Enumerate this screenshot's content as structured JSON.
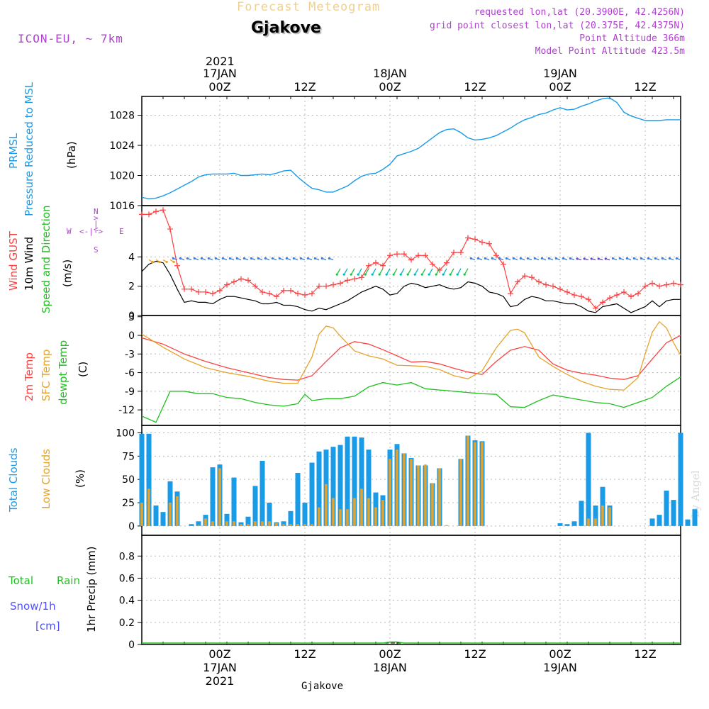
{
  "header": {
    "title_faded": "Forecast Meteogram",
    "location": "Gjakove",
    "model": "ICON-EU, ~ 7km",
    "requested": "requested lon,lat (20.3900E, 42.4256N)",
    "closest": "grid point closest lon,lat (20.375E, 42.4375N)",
    "point_alt": "Point Altitude 366m",
    "model_alt": "Model Point Altitude 423.5m",
    "watermark": "by Angel",
    "bottom_label": "Gjakove"
  },
  "colors": {
    "pressure": "#1e90ff",
    "gust": "#ff4040",
    "wind": "#000000",
    "temp2m": "#ff4040",
    "sfc": "#e6a32a",
    "dewpt": "#20c020",
    "total_clouds": "#1a9be8",
    "low_clouds": "#e6a32a",
    "rain": "#20c020",
    "snow": "#5050ff",
    "purple": "#b040d0"
  },
  "time_axis": {
    "top_year": "2021",
    "top_labels": [
      {
        "h": 0,
        "l1": "17JAN",
        "l2": "00Z"
      },
      {
        "h": 12,
        "l1": "",
        "l2": "12Z"
      },
      {
        "h": 24,
        "l1": "18JAN",
        "l2": "00Z"
      },
      {
        "h": 36,
        "l1": "",
        "l2": "12Z"
      },
      {
        "h": 48,
        "l1": "19JAN",
        "l2": "00Z"
      },
      {
        "h": 60,
        "l1": "",
        "l2": "12Z"
      }
    ],
    "bottom_labels": [
      {
        "h": 0,
        "l1": "00Z",
        "l2": "17JAN",
        "l3": "2021"
      },
      {
        "h": 12,
        "l1": "12Z",
        "l2": "",
        "l3": ""
      },
      {
        "h": 24,
        "l1": "00Z",
        "l2": "18JAN",
        "l3": ""
      },
      {
        "h": 36,
        "l1": "12Z",
        "l2": "",
        "l3": ""
      },
      {
        "h": 48,
        "l1": "00Z",
        "l2": "19JAN",
        "l3": ""
      },
      {
        "h": 60,
        "l1": "12Z",
        "l2": "",
        "l3": ""
      }
    ]
  },
  "panels": {
    "pressure": {
      "label1": "PRMSL",
      "label2": "Pressure Reduced to MSL",
      "unit": "(hPa)",
      "ticks": [
        "1016",
        "1020",
        "1024",
        "1028"
      ]
    },
    "wind": {
      "label1": "Wind GUST",
      "label2": "10m Wind",
      "label3": "Speed and Direction",
      "unit": "(m/s)",
      "ticks": [
        "0",
        "2",
        "4"
      ],
      "compass": {
        "n": "N",
        "s": "S",
        "w": "W",
        "e": "E"
      }
    },
    "temp": {
      "label1": "2m Temp",
      "label2": "SFC Temp",
      "label3": "dewpt Temp",
      "unit": "(C)",
      "ticks": [
        "-12",
        "-9",
        "-6",
        "-3",
        "0",
        "3"
      ]
    },
    "clouds": {
      "label1": "Total Clouds",
      "label2": "Low Clouds",
      "unit": "(%)",
      "ticks": [
        "0",
        "25",
        "50",
        "75",
        "100"
      ]
    },
    "precip": {
      "label1": "Total",
      "label2": "Rain",
      "label3": "Snow/1h",
      "label4": "[cm]",
      "unit": "1hr Precip (mm)",
      "ticks": [
        "0",
        "0.2",
        "0.4",
        "0.6",
        "0.8"
      ]
    }
  },
  "chart_data": [
    {
      "type": "line",
      "title": "PRMSL Pressure Reduced to MSL",
      "ylabel": "hPa",
      "ylim": [
        1016,
        1030
      ],
      "x_hours_from": -11,
      "series": [
        {
          "name": "PRMSL",
          "x": [
            -11,
            -10,
            -9,
            -8,
            -7,
            -6,
            -5,
            -4,
            -3,
            -2,
            -1,
            0,
            1,
            2,
            3,
            4,
            5,
            6,
            7,
            8,
            9,
            10,
            11,
            12,
            13,
            14,
            15,
            16,
            17,
            18,
            19,
            20,
            21,
            22,
            23,
            24,
            25,
            26,
            27,
            28,
            29,
            30,
            31,
            32,
            33,
            34,
            35,
            36,
            37,
            38,
            39,
            40,
            41,
            42,
            43,
            44,
            45,
            46,
            47,
            48,
            49,
            50,
            51,
            52,
            53,
            54,
            55,
            56,
            57,
            58,
            59,
            60,
            61,
            62,
            63,
            64,
            65
          ],
          "values": [
            1017.1,
            1016.9,
            1017.0,
            1017.3,
            1017.7,
            1018.2,
            1018.7,
            1019.2,
            1019.8,
            1020.1,
            1020.2,
            1020.2,
            1020.2,
            1020.3,
            1020.0,
            1020.0,
            1020.1,
            1020.2,
            1020.1,
            1020.3,
            1020.6,
            1020.7,
            1019.8,
            1019.0,
            1018.3,
            1018.1,
            1017.8,
            1017.8,
            1018.2,
            1018.6,
            1019.3,
            1019.9,
            1020.2,
            1020.3,
            1020.8,
            1021.5,
            1022.6,
            1022.9,
            1023.2,
            1023.6,
            1024.3,
            1025.0,
            1025.7,
            1026.1,
            1026.2,
            1025.7,
            1025.0,
            1024.7,
            1024.8,
            1025.0,
            1025.3,
            1025.8,
            1026.3,
            1026.9,
            1027.4,
            1027.7,
            1028.1,
            1028.3,
            1028.7,
            1029.0,
            1028.7,
            1028.8,
            1029.2,
            1029.5,
            1029.9,
            1030.2,
            1030.3,
            1029.7,
            1028.4,
            1027.9,
            1027.6,
            1027.3,
            1027.3,
            1027.3,
            1027.4,
            1027.4,
            1027.4
          ]
        }
      ]
    },
    {
      "type": "line",
      "title": "Wind GUST / 10m Wind Speed and Direction",
      "ylabel": "m/s",
      "ylim": [
        0,
        7.5
      ],
      "series": [
        {
          "name": "Wind GUST",
          "x": [
            -11,
            -10,
            -9,
            -8,
            -7,
            -6,
            -5,
            -4,
            -3,
            -2,
            -1,
            0,
            1,
            2,
            3,
            4,
            5,
            6,
            7,
            8,
            9,
            10,
            11,
            12,
            13,
            14,
            15,
            16,
            17,
            18,
            19,
            20,
            21,
            22,
            23,
            24,
            25,
            26,
            27,
            28,
            29,
            30,
            31,
            32,
            33,
            34,
            35,
            36,
            37,
            38,
            39,
            40,
            41,
            42,
            43,
            44,
            45,
            46,
            47,
            48,
            49,
            50,
            51,
            52,
            53,
            54,
            55,
            56,
            57,
            58,
            59,
            60,
            61,
            62,
            63,
            64,
            65
          ],
          "values": [
            6.9,
            6.9,
            7.1,
            7.2,
            5.9,
            3.4,
            1.8,
            1.8,
            1.6,
            1.6,
            1.5,
            1.7,
            2.1,
            2.3,
            2.5,
            2.4,
            2.0,
            1.6,
            1.5,
            1.3,
            1.7,
            1.7,
            1.5,
            1.4,
            1.5,
            2.0,
            2.0,
            2.1,
            2.2,
            2.4,
            2.5,
            2.6,
            3.4,
            3.6,
            3.4,
            4.1,
            4.2,
            4.2,
            3.8,
            4.1,
            4.1,
            3.5,
            3.1,
            3.6,
            4.3,
            4.3,
            5.3,
            5.2,
            5.0,
            4.9,
            4.1,
            3.5,
            1.5,
            2.3,
            2.7,
            2.6,
            2.3,
            2.1,
            2.0,
            1.8,
            1.6,
            1.4,
            1.3,
            1.1,
            0.5,
            0.9,
            1.2,
            1.4,
            1.6,
            1.3,
            1.5,
            2.0,
            2.2,
            2.0,
            2.1,
            2.2,
            2.1
          ]
        },
        {
          "name": "10m Wind",
          "x": [
            -11,
            -10,
            -9,
            -8,
            -7,
            -6,
            -5,
            -4,
            -3,
            -2,
            -1,
            0,
            1,
            2,
            3,
            4,
            5,
            6,
            7,
            8,
            9,
            10,
            11,
            12,
            13,
            14,
            15,
            16,
            17,
            18,
            19,
            20,
            21,
            22,
            23,
            24,
            25,
            26,
            27,
            28,
            29,
            30,
            31,
            32,
            33,
            34,
            35,
            36,
            37,
            38,
            39,
            40,
            41,
            42,
            43,
            44,
            45,
            46,
            47,
            48,
            49,
            50,
            51,
            52,
            53,
            54,
            55,
            56,
            57,
            58,
            59,
            60,
            61,
            62,
            63,
            64,
            65
          ],
          "values": [
            3.0,
            3.5,
            3.7,
            3.6,
            2.8,
            1.8,
            0.9,
            1.0,
            0.9,
            0.9,
            0.8,
            1.1,
            1.3,
            1.3,
            1.2,
            1.1,
            1.0,
            0.8,
            0.8,
            0.9,
            0.7,
            0.7,
            0.6,
            0.4,
            0.3,
            0.5,
            0.4,
            0.6,
            0.8,
            1.0,
            1.3,
            1.6,
            1.8,
            2.0,
            1.8,
            1.4,
            1.5,
            2.0,
            2.2,
            2.1,
            1.9,
            2.0,
            2.1,
            1.9,
            1.8,
            1.9,
            2.3,
            2.2,
            2.0,
            1.6,
            1.5,
            1.3,
            0.6,
            0.7,
            1.1,
            1.3,
            1.2,
            1.0,
            1.0,
            0.9,
            0.8,
            0.8,
            0.6,
            0.3,
            0.2,
            0.6,
            0.7,
            0.8,
            0.5,
            0.2,
            0.4,
            0.6,
            1.0,
            0.6,
            1.0,
            1.1,
            1.1
          ]
        }
      ]
    },
    {
      "type": "line",
      "title": "2m Temp / SFC Temp / dewpt Temp",
      "ylabel": "C",
      "ylim": [
        -14,
        3
      ],
      "series": [
        {
          "name": "2m Temp",
          "x": [
            -11,
            -8,
            -5,
            -2,
            1,
            4,
            7,
            9,
            11,
            13,
            15,
            17,
            19,
            21,
            23,
            25,
            27,
            29,
            31,
            33,
            35,
            37,
            39,
            41,
            43,
            45,
            47,
            49,
            51,
            53,
            55,
            57,
            59,
            61,
            63,
            65
          ],
          "values": [
            -0.4,
            -1.4,
            -3.0,
            -4.2,
            -5.2,
            -6.0,
            -6.8,
            -7.1,
            -7.2,
            -6.5,
            -4.2,
            -2.0,
            -1.0,
            -1.4,
            -2.3,
            -3.3,
            -4.3,
            -4.2,
            -4.6,
            -5.3,
            -5.9,
            -6.3,
            -4.2,
            -2.4,
            -1.8,
            -2.4,
            -4.6,
            -5.6,
            -6.1,
            -6.4,
            -6.9,
            -7.1,
            -6.5,
            -3.8,
            -1.2,
            0.0
          ]
        },
        {
          "name": "SFC Temp",
          "x": [
            -11,
            -8,
            -5,
            -2,
            1,
            4,
            7,
            9,
            11,
            13,
            14,
            15,
            16,
            17,
            19,
            21,
            23,
            25,
            27,
            29,
            31,
            33,
            35,
            37,
            39,
            41,
            42,
            43,
            45,
            47,
            49,
            51,
            53,
            55,
            57,
            59,
            60,
            61,
            62,
            63,
            64,
            65
          ],
          "values": [
            0.2,
            -1.9,
            -3.8,
            -5.2,
            -6.0,
            -6.6,
            -7.4,
            -7.7,
            -7.7,
            -3.5,
            0.2,
            1.5,
            1.2,
            -0.1,
            -2.5,
            -3.3,
            -3.8,
            -4.8,
            -4.9,
            -5.0,
            -5.5,
            -6.5,
            -7.0,
            -5.7,
            -2.0,
            0.8,
            1.0,
            0.4,
            -3.5,
            -5.0,
            -6.3,
            -7.4,
            -8.2,
            -8.7,
            -8.8,
            -6.8,
            -3.0,
            0.5,
            2.2,
            1.2,
            -1.2,
            -3.2
          ]
        },
        {
          "name": "dewpt Temp",
          "x": [
            -11,
            -9,
            -7,
            -5,
            -3,
            -1,
            1,
            3,
            5,
            7,
            9,
            11,
            12,
            13,
            15,
            17,
            19,
            21,
            23,
            25,
            27,
            29,
            31,
            33,
            35,
            37,
            39,
            41,
            43,
            45,
            47,
            49,
            51,
            53,
            55,
            57,
            59,
            61,
            63,
            65
          ],
          "values": [
            -13.0,
            -14.0,
            -9.0,
            -9.0,
            -9.4,
            -9.4,
            -10.0,
            -10.2,
            -10.8,
            -11.2,
            -11.4,
            -11.0,
            -9.5,
            -10.5,
            -10.2,
            -10.2,
            -9.8,
            -8.3,
            -7.6,
            -8.0,
            -7.6,
            -8.6,
            -8.8,
            -9.0,
            -9.2,
            -9.4,
            -9.5,
            -11.5,
            -11.6,
            -10.5,
            -9.6,
            -10.0,
            -10.4,
            -10.8,
            -11.0,
            -11.6,
            -10.8,
            -10.0,
            -8.2,
            -6.7
          ]
        }
      ]
    },
    {
      "type": "bar",
      "title": "Total Clouds / Low Clouds",
      "ylabel": "%",
      "ylim": [
        0,
        100
      ],
      "x_start_hour": -11,
      "series": [
        {
          "name": "Total Clouds",
          "values": [
            99,
            99,
            22,
            15,
            48,
            37,
            0,
            2,
            5,
            12,
            63,
            66,
            13,
            52,
            4,
            10,
            43,
            70,
            25,
            4,
            5,
            16,
            57,
            25,
            68,
            80,
            82,
            85,
            87,
            96,
            96,
            95,
            82,
            36,
            33,
            82,
            88,
            78,
            73,
            65,
            65,
            46,
            62,
            0,
            0,
            72,
            97,
            92,
            91,
            0,
            0,
            0,
            0,
            0,
            0,
            0,
            0,
            0,
            0,
            3,
            2,
            5,
            27,
            100,
            22,
            42,
            22,
            0,
            0,
            0,
            0,
            0,
            8,
            12,
            38,
            28,
            100,
            7,
            18
          ]
        },
        {
          "name": "Low Clouds",
          "values": [
            25,
            40,
            0,
            0,
            25,
            32,
            0,
            0,
            1,
            8,
            5,
            62,
            5,
            5,
            2,
            2,
            5,
            5,
            5,
            3,
            2,
            2,
            2,
            2,
            2,
            20,
            45,
            30,
            18,
            18,
            30,
            40,
            30,
            20,
            28,
            72,
            82,
            78,
            72,
            65,
            66,
            46,
            62,
            1,
            0,
            72,
            97,
            90,
            90,
            0,
            0,
            0,
            0,
            0,
            0,
            0,
            0,
            0,
            0,
            0,
            0,
            0,
            0,
            8,
            8,
            22,
            20,
            0,
            0,
            0,
            0,
            0,
            0,
            0,
            0,
            0,
            0,
            0,
            0
          ]
        }
      ]
    },
    {
      "type": "line",
      "title": "1hr Precip",
      "ylabel": "1hr Precip (mm)",
      "ylim": [
        0,
        1.0
      ],
      "series": [
        {
          "name": "Total Rain",
          "x": [
            -11,
            23,
            24,
            25,
            26,
            65
          ],
          "values": [
            0,
            0,
            0.01,
            0.01,
            0,
            0
          ]
        }
      ]
    }
  ]
}
